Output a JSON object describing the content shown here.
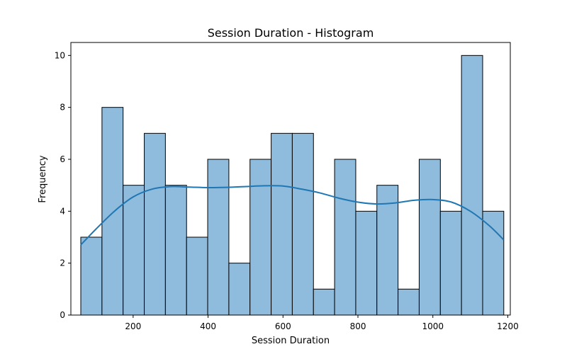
{
  "chart_data": {
    "type": "bar",
    "title": "Session Duration - Histogram",
    "xlabel": "Session Duration",
    "ylabel": "Frequency",
    "xlim": [
      33.8,
      1206.7
    ],
    "ylim": [
      0,
      10.5
    ],
    "xticks": [
      200,
      400,
      600,
      800,
      1000,
      1200
    ],
    "yticks": [
      0,
      2,
      4,
      6,
      8,
      10
    ],
    "bins": [
      {
        "x0": 60.3,
        "x1": 116.8,
        "count": 3
      },
      {
        "x0": 116.8,
        "x1": 173.2,
        "count": 8
      },
      {
        "x0": 173.2,
        "x1": 229.7,
        "count": 5
      },
      {
        "x0": 229.7,
        "x1": 286.1,
        "count": 7
      },
      {
        "x0": 286.1,
        "x1": 342.6,
        "count": 5
      },
      {
        "x0": 342.6,
        "x1": 399.0,
        "count": 3
      },
      {
        "x0": 399.0,
        "x1": 455.5,
        "count": 6
      },
      {
        "x0": 455.5,
        "x1": 511.9,
        "count": 2
      },
      {
        "x0": 511.9,
        "x1": 568.4,
        "count": 6
      },
      {
        "x0": 568.4,
        "x1": 624.8,
        "count": 7
      },
      {
        "x0": 624.8,
        "x1": 681.3,
        "count": 7
      },
      {
        "x0": 681.3,
        "x1": 737.7,
        "count": 1
      },
      {
        "x0": 737.7,
        "x1": 794.2,
        "count": 6
      },
      {
        "x0": 794.2,
        "x1": 850.6,
        "count": 4
      },
      {
        "x0": 850.6,
        "x1": 907.1,
        "count": 5
      },
      {
        "x0": 907.1,
        "x1": 963.5,
        "count": 1
      },
      {
        "x0": 963.5,
        "x1": 1020.0,
        "count": 6
      },
      {
        "x0": 1020.0,
        "x1": 1076.4,
        "count": 4
      },
      {
        "x0": 1076.4,
        "x1": 1132.9,
        "count": 10
      },
      {
        "x0": 1132.9,
        "x1": 1189.3,
        "count": 4
      }
    ],
    "kde": {
      "x": [
        60,
        100,
        150,
        200,
        250,
        300,
        350,
        400,
        450,
        500,
        550,
        600,
        650,
        700,
        750,
        800,
        850,
        900,
        950,
        1000,
        1050,
        1100,
        1150,
        1189
      ],
      "y": [
        2.7,
        3.3,
        4.0,
        4.55,
        4.85,
        4.95,
        4.93,
        4.91,
        4.92,
        4.95,
        4.98,
        4.97,
        4.85,
        4.7,
        4.5,
        4.35,
        4.28,
        4.32,
        4.42,
        4.45,
        4.35,
        4.0,
        3.45,
        2.9
      ]
    },
    "colors": {
      "bar_fill": "#8fbbdc",
      "bar_edge": "#000000",
      "kde_line": "#1f77b4"
    },
    "grid": false,
    "legend": "none"
  }
}
